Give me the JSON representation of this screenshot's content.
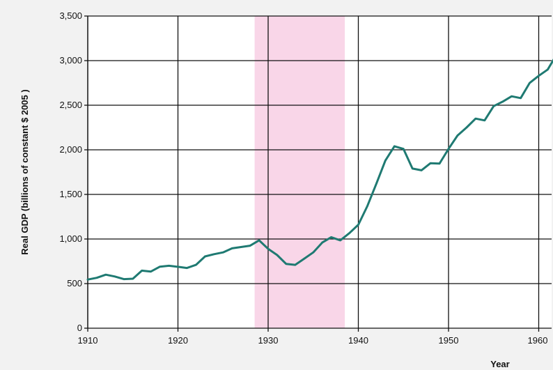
{
  "chart_data": {
    "type": "line",
    "title": "",
    "xlabel": "Year",
    "ylabel": "Real GDP (billions of constant $ 2005 )",
    "xlim": [
      1910,
      1962
    ],
    "ylim": [
      0,
      3500
    ],
    "grid": true,
    "x_ticks": [
      1910,
      1920,
      1930,
      1940,
      1950,
      1960
    ],
    "x_tick_labels": [
      "1910",
      "1920",
      "1930",
      "1940",
      "1950",
      "1960"
    ],
    "y_ticks": [
      0,
      500,
      1000,
      1500,
      2000,
      2500,
      3000,
      3500
    ],
    "y_tick_labels": [
      "0",
      "500",
      "1,000",
      "1,500",
      "2,000",
      "2,500",
      "3,000",
      "3,500"
    ],
    "shaded_region": {
      "x_start": 1928.5,
      "x_end": 1938.5,
      "color": "#f9d6e8"
    },
    "line_color": "#1f7a72",
    "background_color": "#ffffff",
    "series": [
      {
        "points": [
          [
            1910,
            545
          ],
          [
            1911,
            565
          ],
          [
            1912,
            600
          ],
          [
            1913,
            580
          ],
          [
            1914,
            550
          ],
          [
            1915,
            555
          ],
          [
            1916,
            645
          ],
          [
            1917,
            635
          ],
          [
            1918,
            690
          ],
          [
            1919,
            700
          ],
          [
            1920,
            688
          ],
          [
            1921,
            675
          ],
          [
            1922,
            710
          ],
          [
            1923,
            805
          ],
          [
            1924,
            830
          ],
          [
            1925,
            850
          ],
          [
            1926,
            895
          ],
          [
            1927,
            910
          ],
          [
            1928,
            925
          ],
          [
            1929,
            985
          ],
          [
            1930,
            890
          ],
          [
            1931,
            820
          ],
          [
            1932,
            720
          ],
          [
            1933,
            710
          ],
          [
            1934,
            780
          ],
          [
            1935,
            850
          ],
          [
            1936,
            960
          ],
          [
            1937,
            1020
          ],
          [
            1938,
            985
          ],
          [
            1939,
            1065
          ],
          [
            1940,
            1160
          ],
          [
            1941,
            1370
          ],
          [
            1942,
            1620
          ],
          [
            1943,
            1880
          ],
          [
            1944,
            2040
          ],
          [
            1945,
            2010
          ],
          [
            1946,
            1790
          ],
          [
            1947,
            1770
          ],
          [
            1948,
            1850
          ],
          [
            1949,
            1845
          ],
          [
            1950,
            2010
          ],
          [
            1951,
            2160
          ],
          [
            1952,
            2250
          ],
          [
            1953,
            2350
          ],
          [
            1954,
            2330
          ],
          [
            1955,
            2490
          ],
          [
            1956,
            2540
          ],
          [
            1957,
            2600
          ],
          [
            1958,
            2580
          ],
          [
            1959,
            2750
          ],
          [
            1960,
            2830
          ],
          [
            1961,
            2900
          ],
          [
            1962,
            3070
          ]
        ]
      }
    ]
  }
}
